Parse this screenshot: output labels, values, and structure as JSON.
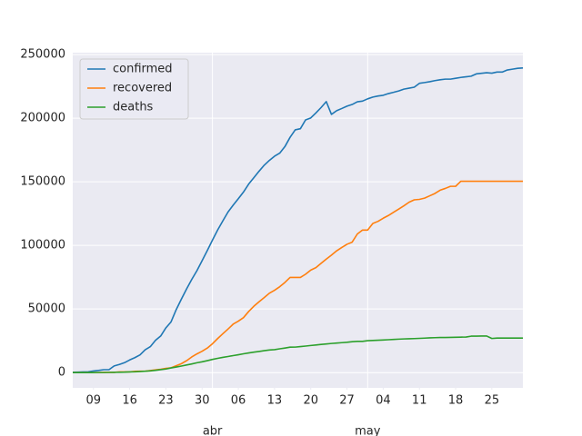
{
  "chart_data": {
    "type": "line",
    "x": [
      "03-05",
      "03-06",
      "03-07",
      "03-08",
      "03-09",
      "03-10",
      "03-11",
      "03-12",
      "03-13",
      "03-14",
      "03-15",
      "03-16",
      "03-17",
      "03-18",
      "03-19",
      "03-20",
      "03-21",
      "03-22",
      "03-23",
      "03-24",
      "03-25",
      "03-26",
      "03-27",
      "03-28",
      "03-29",
      "03-30",
      "03-31",
      "04-01",
      "04-02",
      "04-03",
      "04-04",
      "04-05",
      "04-06",
      "04-07",
      "04-08",
      "04-09",
      "04-10",
      "04-11",
      "04-12",
      "04-13",
      "04-14",
      "04-15",
      "04-16",
      "04-17",
      "04-18",
      "04-19",
      "04-20",
      "04-21",
      "04-22",
      "04-23",
      "04-24",
      "04-25",
      "04-26",
      "04-27",
      "04-28",
      "04-29",
      "04-30",
      "05-01",
      "05-02",
      "05-03",
      "05-04",
      "05-05",
      "05-06",
      "05-07",
      "05-08",
      "05-09",
      "05-10",
      "05-11",
      "05-12",
      "05-13",
      "05-14",
      "05-15",
      "05-16",
      "05-17",
      "05-18",
      "05-19",
      "05-20",
      "05-21",
      "05-22",
      "05-23",
      "05-24",
      "05-25",
      "05-26",
      "05-27",
      "05-28",
      "05-29",
      "05-30",
      "05-31"
    ],
    "series": [
      {
        "name": "confirmed",
        "color": "#1f77b4",
        "values": [
          282,
          401,
          525,
          674,
          1231,
          1695,
          2277,
          2277,
          5232,
          6391,
          7798,
          9942,
          11748,
          13910,
          17963,
          20410,
          25374,
          28768,
          35136,
          39885,
          49515,
          57786,
          65719,
          73235,
          80110,
          87956,
          95923,
          104118,
          112065,
          119199,
          126168,
          131646,
          136675,
          141942,
          148220,
          153222,
          158273,
          163027,
          166831,
          170099,
          172541,
          177644,
          184948,
          190839,
          191726,
          198674,
          200210,
          204178,
          208389,
          213024,
          202990,
          205905,
          207634,
          209465,
          210773,
          212917,
          213435,
          215216,
          216582,
          217466,
          218011,
          219329,
          220325,
          221447,
          222857,
          223578,
          224350,
          227436,
          228030,
          228691,
          229540,
          230183,
          230698,
          230698,
          231350,
          232037,
          232555,
          233037,
          234824,
          235290,
          235772,
          235400,
          236259,
          236259,
          237906,
          238564,
          239228,
          239479
        ]
      },
      {
        "name": "recovered",
        "color": "#ff7f0e",
        "values": [
          2,
          2,
          30,
          30,
          32,
          32,
          183,
          183,
          193,
          517,
          517,
          530,
          1028,
          1081,
          1107,
          1588,
          2125,
          2575,
          3355,
          3794,
          5367,
          7015,
          9357,
          12285,
          14709,
          16780,
          19259,
          22647,
          26743,
          30513,
          34219,
          38080,
          40437,
          43208,
          48021,
          52165,
          55668,
          58936,
          62391,
          64727,
          67504,
          70853,
          74797,
          74797,
          74797,
          77357,
          80587,
          82514,
          85915,
          89250,
          92355,
          95708,
          98372,
          100875,
          102548,
          108947,
          112050,
          112050,
          117248,
          118902,
          121343,
          123486,
          126002,
          128511,
          131148,
          133952,
          135820,
          136166,
          137139,
          138980,
          140823,
          143374,
          144783,
          146446,
          146446,
          150376,
          150376,
          150376,
          150376,
          150376,
          150376,
          150376,
          150376,
          150376,
          150376,
          150376,
          150376,
          150376
        ]
      },
      {
        "name": "deaths",
        "color": "#2ca02c",
        "values": [
          3,
          10,
          17,
          28,
          35,
          54,
          55,
          133,
          195,
          289,
          342,
          533,
          623,
          830,
          1043,
          1375,
          1772,
          2311,
          2808,
          3647,
          4365,
          5138,
          5982,
          6803,
          7716,
          8464,
          9387,
          10348,
          11198,
          11947,
          12641,
          13341,
          14045,
          14792,
          15447,
          16081,
          16606,
          17209,
          17756,
          18056,
          18708,
          19315,
          20002,
          20043,
          20453,
          20852,
          21282,
          21717,
          22157,
          22524,
          22902,
          23190,
          23521,
          23822,
          24275,
          24543,
          24543,
          25100,
          25264,
          25428,
          25613,
          25857,
          26070,
          26299,
          26478,
          26621,
          26744,
          26920,
          27104,
          27321,
          27459,
          27563,
          27563,
          27709,
          27778,
          27888,
          27940,
          28628,
          28678,
          28752,
          28752,
          26834,
          27117,
          27117,
          27119,
          27121,
          27125,
          27127
        ]
      }
    ],
    "xlim": [
      "03-05",
      "05-31"
    ],
    "xticks": [
      {
        "value": "03-09",
        "label": "09"
      },
      {
        "value": "03-16",
        "label": "16"
      },
      {
        "value": "03-23",
        "label": "23"
      },
      {
        "value": "03-30",
        "label": "30"
      },
      {
        "value": "04-06",
        "label": "06"
      },
      {
        "value": "04-13",
        "label": "13"
      },
      {
        "value": "04-20",
        "label": "20"
      },
      {
        "value": "04-27",
        "label": "27"
      },
      {
        "value": "05-04",
        "label": "04"
      },
      {
        "value": "05-11",
        "label": "11"
      },
      {
        "value": "05-18",
        "label": "18"
      },
      {
        "value": "05-25",
        "label": "25"
      }
    ],
    "month_ticks": [
      {
        "value": "04-01",
        "label": "abr"
      },
      {
        "value": "05-01",
        "label": "may"
      }
    ],
    "ylim": [
      -12000,
      251500
    ],
    "yticks": [
      0,
      50000,
      100000,
      150000,
      200000,
      250000
    ],
    "grid": true,
    "legend": "upper left"
  }
}
